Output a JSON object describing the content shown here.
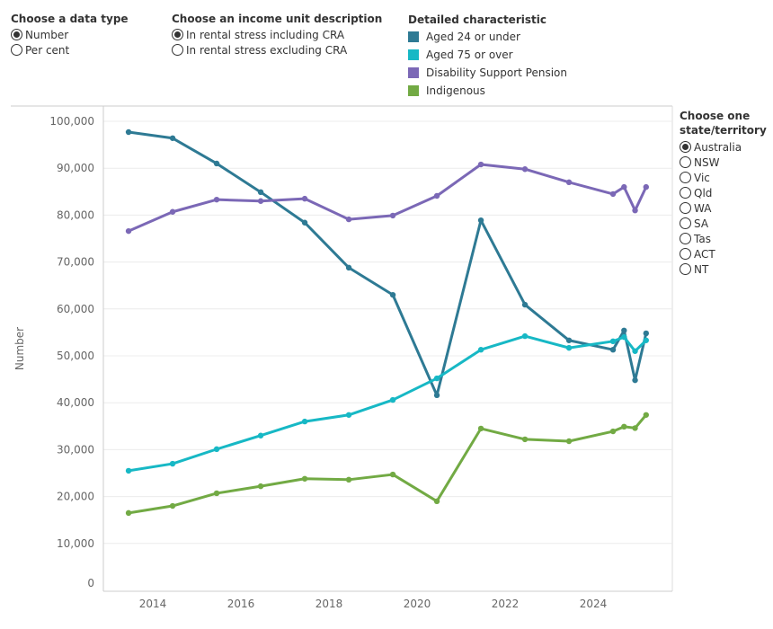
{
  "controls": {
    "data_type": {
      "title": "Choose a data type",
      "options": [
        "Number",
        "Per cent"
      ],
      "selected": "Number"
    },
    "income_unit": {
      "title": "Choose an income unit description",
      "options": [
        "In rental stress including CRA",
        "In rental stress excluding CRA"
      ],
      "selected": "In rental stress including CRA"
    },
    "state": {
      "title_line1": "Choose one",
      "title_line2": "state/territory",
      "options": [
        "Australia",
        "NSW",
        "Vic",
        "Qld",
        "WA",
        "SA",
        "Tas",
        "ACT",
        "NT"
      ],
      "selected": "Australia"
    }
  },
  "legend": {
    "title": "Detailed characteristic"
  },
  "chart_data": {
    "type": "line",
    "xlabel": "",
    "ylabel": "Number",
    "xlim": [
      2012.9,
      2025.6
    ],
    "ylim": [
      0,
      100000
    ],
    "x_ticks": [
      2014,
      2016,
      2018,
      2020,
      2022,
      2024
    ],
    "y_ticks": [
      0,
      10000,
      20000,
      30000,
      40000,
      50000,
      60000,
      70000,
      80000,
      90000,
      100000
    ],
    "y_tick_labels": [
      "0",
      "10,000",
      "20,000",
      "30,000",
      "40,000",
      "50,000",
      "60,000",
      "70,000",
      "80,000",
      "90,000",
      "100,000"
    ],
    "grid": "horizontal",
    "legend_placement": "top",
    "x": [
      2013.45,
      2014.45,
      2015.45,
      2016.45,
      2017.45,
      2018.45,
      2019.45,
      2020.45,
      2021.45,
      2022.45,
      2023.45,
      2024.45,
      2024.7,
      2024.95,
      2025.2
    ],
    "series": [
      {
        "name": "Aged 24 or under",
        "color": "#2e7a94",
        "values": [
          97700,
          96400,
          91000,
          84900,
          78400,
          68800,
          63000,
          41600,
          78900,
          60900,
          53300,
          51300,
          55400,
          44800,
          54800
        ]
      },
      {
        "name": "Aged 75 or over",
        "color": "#17b8c5",
        "values": [
          25500,
          27000,
          30100,
          33000,
          36000,
          37400,
          40600,
          45200,
          51300,
          54200,
          51700,
          53100,
          54000,
          51000,
          53300
        ]
      },
      {
        "name": "Disability Support Pension",
        "color": "#7b68b6",
        "values": [
          76600,
          80700,
          83300,
          83000,
          83500,
          79100,
          79900,
          84100,
          90800,
          89800,
          87000,
          84500,
          86000,
          81000,
          86000
        ]
      },
      {
        "name": "Indigenous",
        "color": "#72aa44",
        "values": [
          16500,
          18000,
          20700,
          22200,
          23800,
          23600,
          24700,
          19000,
          34500,
          32200,
          31800,
          33900,
          34900,
          34600,
          37400
        ]
      }
    ]
  }
}
